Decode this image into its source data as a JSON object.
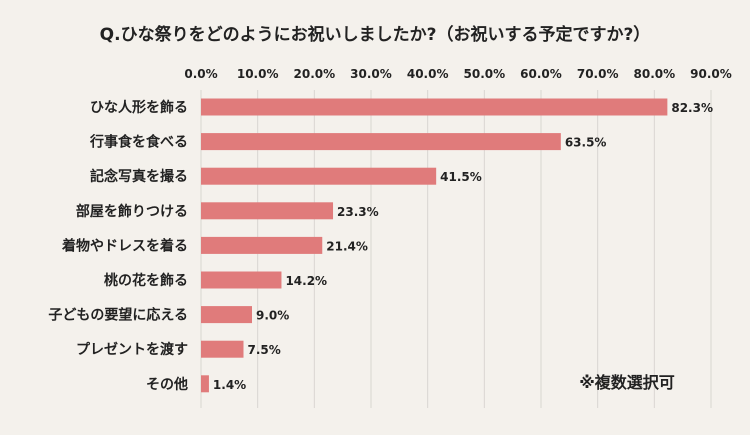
{
  "colors": {
    "background": "#f4f1ec",
    "bar": "#e07b7b",
    "grid": "#d9d6d1",
    "text": "#222222"
  },
  "chart_data": {
    "type": "bar",
    "orientation": "horizontal",
    "title": "Q.ひな祭りをどのようにお祝いしましたか?（お祝いする予定ですか?）",
    "categories": [
      "ひな人形を飾る",
      "行事食を食べる",
      "記念写真を撮る",
      "部屋を飾りつける",
      "着物やドレスを着る",
      "桃の花を飾る",
      "子どもの要望に応える",
      "プレゼントを渡す",
      "その他"
    ],
    "values": [
      82.3,
      63.5,
      41.5,
      23.3,
      21.4,
      14.2,
      9.0,
      7.5,
      1.4
    ],
    "value_labels": [
      "82.3%",
      "63.5%",
      "41.5%",
      "23.3%",
      "21.4%",
      "14.2%",
      "9.0%",
      "7.5%",
      "1.4%"
    ],
    "x_ticks": [
      0,
      10,
      20,
      30,
      40,
      50,
      60,
      70,
      80,
      90
    ],
    "x_tick_labels": [
      "0.0%",
      "10.0%",
      "20.0%",
      "30.0%",
      "40.0%",
      "50.0%",
      "60.0%",
      "70.0%",
      "80.0%",
      "90.0%"
    ],
    "xlim": [
      0,
      90
    ],
    "axis_position": "top",
    "grid": true,
    "note": "※複数選択可"
  }
}
